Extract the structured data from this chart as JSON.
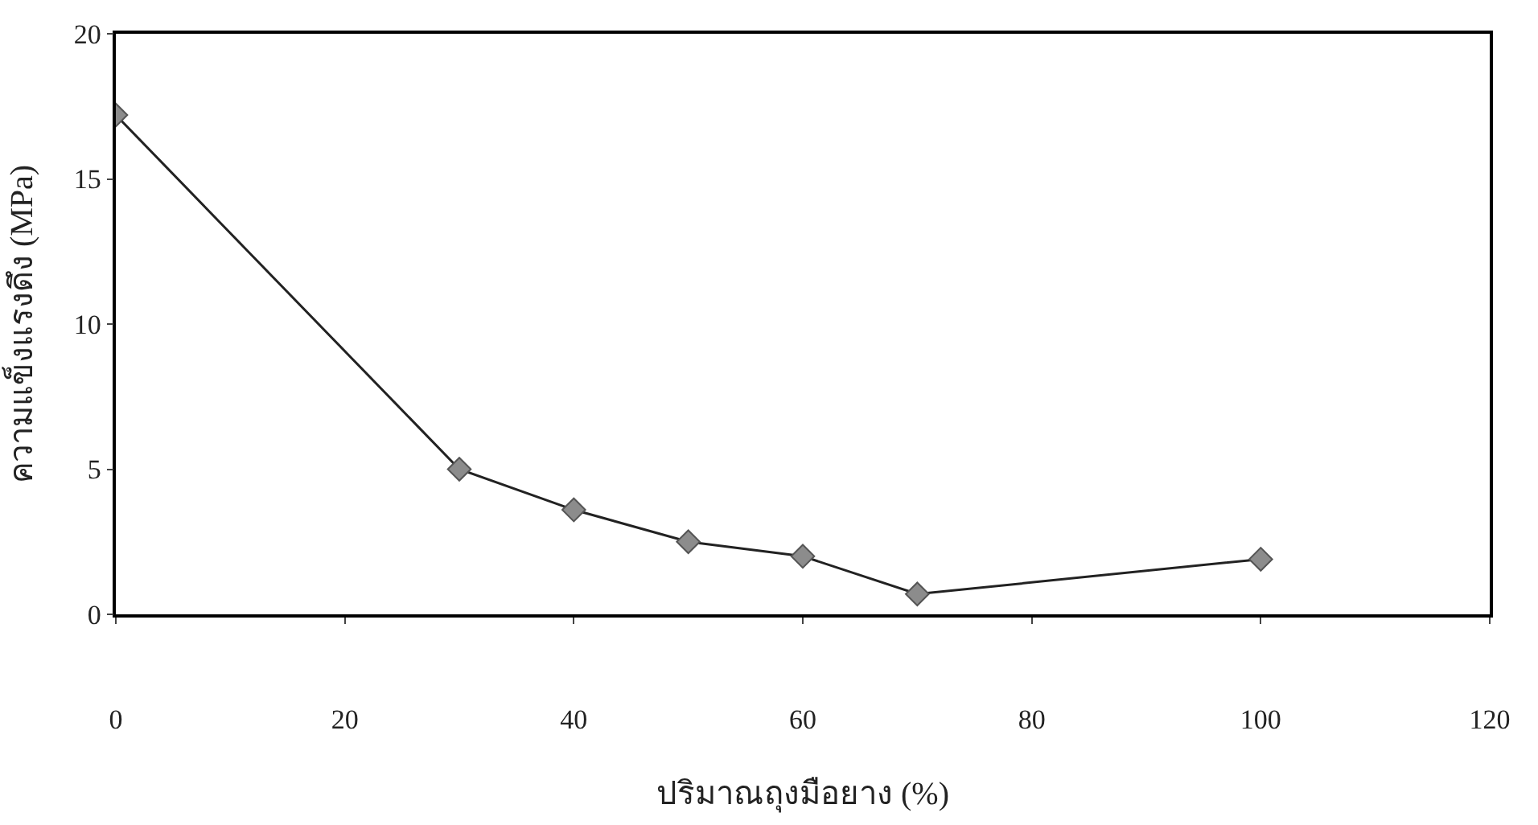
{
  "chart_data": {
    "type": "line",
    "xlabel": "ปริมาณถุงมือยาง (%)",
    "ylabel": "ความแข็งแรงดึง (MPa)",
    "x": [
      0,
      30,
      40,
      50,
      60,
      70,
      100
    ],
    "series": [
      {
        "color": "#222222",
        "values": [
          17.2,
          5.0,
          3.6,
          2.5,
          2.0,
          0.7,
          1.9
        ]
      }
    ],
    "xlim": [
      0,
      120
    ],
    "xticks": [
      0,
      20,
      40,
      60,
      80,
      100,
      120
    ],
    "ylim": [
      0,
      20
    ],
    "yticks": [
      0,
      5,
      10,
      15,
      20
    ],
    "marker": "diamond"
  }
}
